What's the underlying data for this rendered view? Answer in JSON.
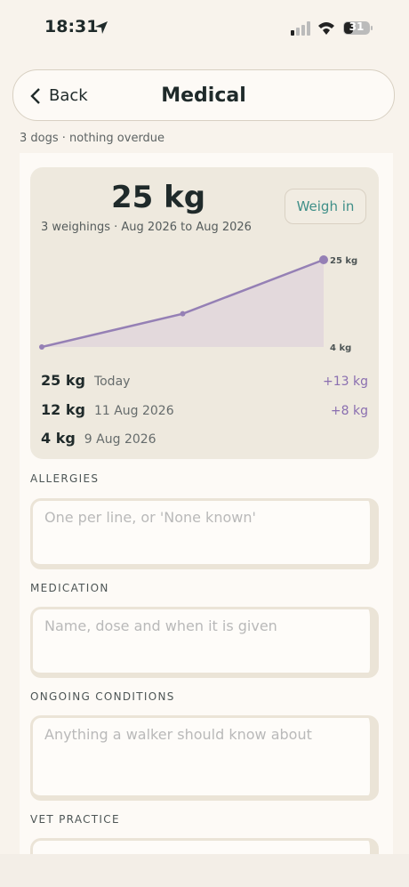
{
  "status_bar": {
    "time": "18:31",
    "battery": "31"
  },
  "header": {
    "back": "Back",
    "title": "Medical"
  },
  "subtitle": "3 dogs · nothing overdue",
  "weight_card": {
    "current": "25 kg",
    "summary": "3 weighings · Aug 2026 to Aug 2026",
    "button": "Weigh in",
    "entries": [
      {
        "weight": "25 kg",
        "date": "Today",
        "change": "+13 kg"
      },
      {
        "weight": "12 kg",
        "date": "11 Aug 2026",
        "change": "+8 kg"
      },
      {
        "weight": "4 kg",
        "date": "9 Aug 2026"
      }
    ]
  },
  "chart_data": {
    "type": "line",
    "values": [
      4,
      12,
      25
    ],
    "color": "#9580b5",
    "fill": "#e3d9dc",
    "ylim": [
      4,
      25
    ],
    "yticks": [
      {
        "value": 4,
        "label": "4 kg"
      },
      {
        "value": 25,
        "label": "25 kg"
      }
    ]
  },
  "fields": [
    {
      "label": "ALLERGIES",
      "placeholder": "One per line, or 'None known'"
    },
    {
      "label": "MEDICATION",
      "placeholder": "Name, dose and when it is given"
    },
    {
      "label": "ONGOING CONDITIONS",
      "placeholder": "Anything a walker should know about"
    },
    {
      "label": "VET PRACTICE"
    }
  ]
}
